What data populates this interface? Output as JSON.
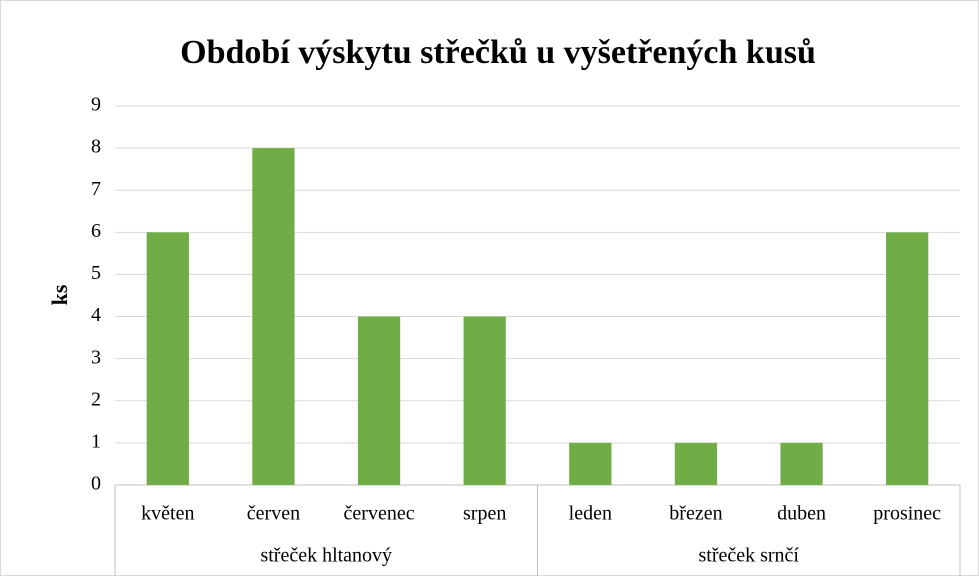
{
  "chart_data": {
    "type": "bar",
    "title": "Období výskytu střečků u vyšetřených kusů",
    "y_label": "ks",
    "groups": [
      {
        "name": "střeček hltanový",
        "categories": [
          "květen",
          "červen",
          "červenec",
          "srpen"
        ],
        "values": [
          6,
          8,
          4,
          4
        ]
      },
      {
        "name": "střeček srnčí",
        "categories": [
          "leden",
          "březen",
          "duben",
          "prosinec"
        ],
        "values": [
          1,
          1,
          1,
          6
        ]
      }
    ],
    "color": "#70ad47",
    "ylim": [
      0,
      9
    ],
    "yticks": [
      0,
      1,
      2,
      3,
      4,
      5,
      6,
      7,
      8,
      9
    ],
    "grid": true
  }
}
